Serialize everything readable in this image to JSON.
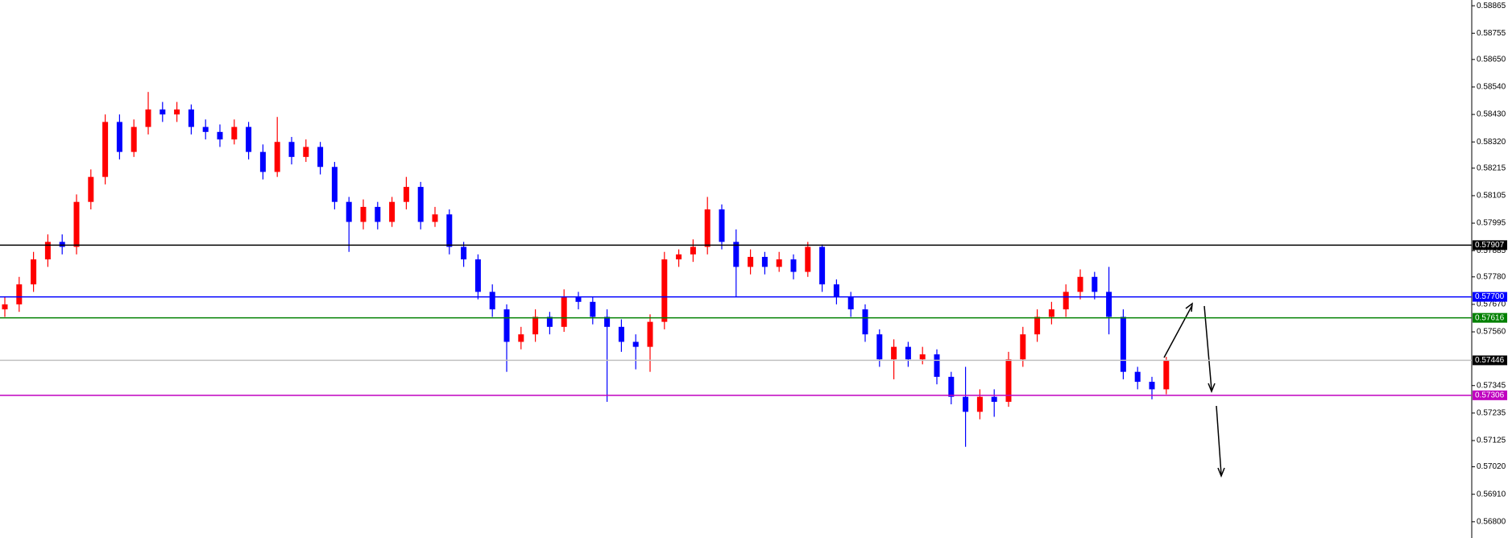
{
  "chart_data": {
    "type": "candlestick",
    "ylim": [
      0.56735,
      0.58888
    ],
    "yticks": [
      0.58865,
      0.58755,
      {
        "value": 0.5865,
        "label": "0.58650"
      },
      {
        "value": 0.5854,
        "label": "0.58540"
      },
      {
        "value": 0.5843,
        "label": "0.58430"
      },
      {
        "value": 0.5832,
        "label": "0.58320"
      },
      0.58215,
      0.58105,
      0.57995,
      0.57885,
      {
        "value": 0.5778,
        "label": "0.57780"
      },
      {
        "value": 0.5767,
        "label": "0.57670"
      },
      {
        "value": 0.5756,
        "label": "0.57560"
      },
      0.57345,
      0.57235,
      0.57125,
      {
        "value": 0.5702,
        "label": "0.57020"
      },
      {
        "value": 0.5691,
        "label": "0.56910"
      },
      {
        "value": 0.568,
        "label": "0.56800"
      }
    ],
    "up_color": "#ff0000",
    "down_color": "#0000ff",
    "open": [
      0.5765,
      0.5767,
      0.5775,
      0.5785,
      0.5792,
      0.579,
      0.5808,
      0.5818,
      0.584,
      0.5828,
      0.5838,
      0.5845,
      0.5843,
      0.5845,
      0.5838,
      0.5836,
      0.5833,
      0.5838,
      0.5828,
      0.582,
      0.5832,
      0.5826,
      0.583,
      0.5822,
      0.5808,
      0.58,
      0.5806,
      0.58,
      0.5808,
      0.5814,
      0.58,
      0.5803,
      0.579,
      0.5785,
      0.5772,
      0.5765,
      0.5752,
      0.5755,
      0.5762,
      0.5758,
      0.577,
      0.5768,
      0.5762,
      0.5758,
      0.5752,
      0.575,
      0.576,
      0.5785,
      0.5787,
      0.579,
      0.5805,
      0.5792,
      0.5782,
      0.5786,
      0.5782,
      0.5785,
      0.578,
      0.579,
      0.5775,
      0.577,
      0.5765,
      0.5755,
      0.5745,
      0.575,
      0.5745,
      0.5747,
      0.5738,
      0.573,
      0.5724,
      0.573,
      0.5728,
      0.5745,
      0.5755,
      0.5762,
      0.5765,
      0.5772,
      0.5778,
      0.5772,
      0.5762,
      0.574,
      0.5736,
      0.5733
    ],
    "high": [
      0.577,
      0.5778,
      0.5788,
      0.5795,
      0.5795,
      0.5811,
      0.5821,
      0.5843,
      0.5843,
      0.5841,
      0.5852,
      0.5848,
      0.5848,
      0.5847,
      0.5841,
      0.5839,
      0.5841,
      0.584,
      0.5831,
      0.5842,
      0.5834,
      0.5833,
      0.5832,
      0.5824,
      0.581,
      0.5809,
      0.5808,
      0.581,
      0.5818,
      0.5816,
      0.5806,
      0.5805,
      0.5792,
      0.5787,
      0.5775,
      0.5767,
      0.5758,
      0.5765,
      0.5764,
      0.5773,
      0.5772,
      0.577,
      0.5765,
      0.5761,
      0.5755,
      0.5763,
      0.5788,
      0.5789,
      0.5793,
      0.581,
      0.5807,
      0.5797,
      0.5789,
      0.5788,
      0.5788,
      0.5787,
      0.5792,
      0.5791,
      0.5777,
      0.5772,
      0.5767,
      0.5757,
      0.5753,
      0.5752,
      0.575,
      0.5749,
      0.574,
      0.5742,
      0.5733,
      0.5733,
      0.5748,
      0.5758,
      0.5765,
      0.5768,
      0.5775,
      0.5781,
      0.578,
      0.5782,
      0.5765,
      0.5742,
      0.5738,
      0.5746
    ],
    "low": [
      0.5762,
      0.5764,
      0.5772,
      0.5782,
      0.5787,
      0.5787,
      0.5805,
      0.5815,
      0.5825,
      0.5826,
      0.5835,
      0.584,
      0.584,
      0.5835,
      0.5833,
      0.583,
      0.5831,
      0.5825,
      0.5817,
      0.5818,
      0.5823,
      0.5824,
      0.5819,
      0.5805,
      0.5788,
      0.5797,
      0.5797,
      0.5798,
      0.5805,
      0.5797,
      0.5798,
      0.5787,
      0.5782,
      0.5769,
      0.5762,
      0.574,
      0.5749,
      0.5752,
      0.5755,
      0.5756,
      0.5765,
      0.5759,
      0.5728,
      0.5748,
      0.5741,
      0.574,
      0.5757,
      0.5782,
      0.5784,
      0.5787,
      0.5789,
      0.577,
      0.5779,
      0.5779,
      0.578,
      0.5777,
      0.5778,
      0.5772,
      0.5767,
      0.5762,
      0.5752,
      0.5742,
      0.5737,
      0.5742,
      0.5743,
      0.5735,
      0.5727,
      0.571,
      0.5721,
      0.5722,
      0.5726,
      0.5742,
      0.5752,
      0.5759,
      0.5762,
      0.5769,
      0.5769,
      0.5755,
      0.5737,
      0.5733,
      0.5729,
      0.5731
    ],
    "close": [
      0.5767,
      0.5775,
      0.5785,
      0.5792,
      0.579,
      0.5808,
      0.5818,
      0.584,
      0.5828,
      0.5838,
      0.5845,
      0.5843,
      0.5845,
      0.5838,
      0.5836,
      0.5833,
      0.5838,
      0.5828,
      0.582,
      0.5832,
      0.5826,
      0.583,
      0.5822,
      0.5808,
      0.58,
      0.5806,
      0.58,
      0.5808,
      0.5814,
      0.58,
      0.5803,
      0.579,
      0.5785,
      0.5772,
      0.5765,
      0.5752,
      0.5755,
      0.5762,
      0.5758,
      0.577,
      0.5768,
      0.5762,
      0.5758,
      0.5752,
      0.575,
      0.576,
      0.5785,
      0.5787,
      0.579,
      0.5805,
      0.5792,
      0.5782,
      0.5786,
      0.5782,
      0.5785,
      0.578,
      0.579,
      0.5775,
      0.577,
      0.5765,
      0.5755,
      0.5745,
      0.575,
      0.5745,
      0.5747,
      0.5738,
      0.573,
      0.5724,
      0.573,
      0.5728,
      0.5745,
      0.5755,
      0.5762,
      0.5765,
      0.5772,
      0.5778,
      0.5772,
      0.5762,
      0.574,
      0.5736,
      0.5733,
      0.57446
    ],
    "levels": [
      {
        "value": 0.57907,
        "color": "#000000",
        "label_color": "#000000"
      },
      {
        "value": 0.577,
        "label": "0.57700",
        "color": "#0000ff",
        "label_color": "#0000ff"
      },
      {
        "value": 0.57616,
        "color": "#008000",
        "label_color": "#008000"
      },
      {
        "value": 0.57446,
        "color": "#c0c0c0",
        "label_color": "#000000"
      },
      {
        "value": 0.57306,
        "color": "#c000c0",
        "label_color": "#c000c0"
      }
    ]
  }
}
